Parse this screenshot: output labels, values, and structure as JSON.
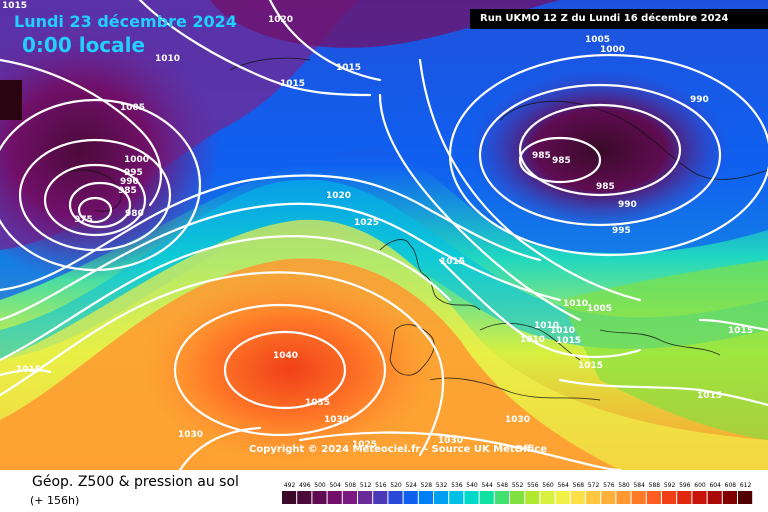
{
  "overlay": {
    "date": "Lundi 23 décembre 2024",
    "time": "0:00 locale",
    "run": "Run UKMO 12 Z du Lundi 16 décembre 2024",
    "copyright": "Copyright © 2024 Meteociel.fr - Source UK MetOffice"
  },
  "footer": {
    "title": "Géop. Z500 & pression au sol",
    "subtitle": "(+ 156h)"
  },
  "legend": {
    "values": [
      "492",
      "496",
      "500",
      "504",
      "508",
      "512",
      "516",
      "520",
      "524",
      "528",
      "532",
      "536",
      "540",
      "544",
      "548",
      "552",
      "556",
      "560",
      "564",
      "568",
      "572",
      "576",
      "580",
      "584",
      "588",
      "592",
      "596",
      "600",
      "604",
      "608",
      "612"
    ],
    "colors": [
      "#3a0a28",
      "#4c0a3a",
      "#5f0c52",
      "#70106a",
      "#7a1a80",
      "#6a2a9a",
      "#4a38b8",
      "#2a48d8",
      "#1060f0",
      "#0080f8",
      "#00a0f0",
      "#00c0e8",
      "#00d8c8",
      "#10e0a0",
      "#40e070",
      "#80e040",
      "#b0e830",
      "#d8f040",
      "#f0f048",
      "#ffe048",
      "#ffc840",
      "#ffb038",
      "#ff9830",
      "#ff7a28",
      "#ff5e20",
      "#f04018",
      "#e02810",
      "#c81408",
      "#a80808",
      "#800000",
      "#500000"
    ]
  },
  "isobars": [
    {
      "label": "1015",
      "note": "top-left corner"
    },
    {
      "label": "1010"
    },
    {
      "label": "1020"
    },
    {
      "label": "1015"
    },
    {
      "label": "1015"
    },
    {
      "label": "1005"
    },
    {
      "label": "1000"
    },
    {
      "label": "995"
    },
    {
      "label": "990"
    },
    {
      "label": "985"
    },
    {
      "label": "975"
    },
    {
      "label": "980"
    },
    {
      "label": "1005"
    },
    {
      "label": "1000"
    },
    {
      "label": "990"
    },
    {
      "label": "985"
    },
    {
      "label": "985"
    },
    {
      "label": "985"
    },
    {
      "label": "990"
    },
    {
      "label": "995"
    },
    {
      "label": "1020"
    },
    {
      "label": "1025"
    },
    {
      "label": "1015"
    },
    {
      "label": "1010"
    },
    {
      "label": "1005"
    },
    {
      "label": "1010"
    },
    {
      "label": "1010"
    },
    {
      "label": "1010"
    },
    {
      "label": "1015"
    },
    {
      "label": "1015"
    },
    {
      "label": "1040"
    },
    {
      "label": "1035"
    },
    {
      "label": "1030"
    },
    {
      "label": "1030"
    },
    {
      "label": "1025"
    },
    {
      "label": "1030"
    },
    {
      "label": "1030"
    },
    {
      "label": "1015"
    },
    {
      "label": "1015"
    },
    {
      "label": "1015"
    }
  ]
}
